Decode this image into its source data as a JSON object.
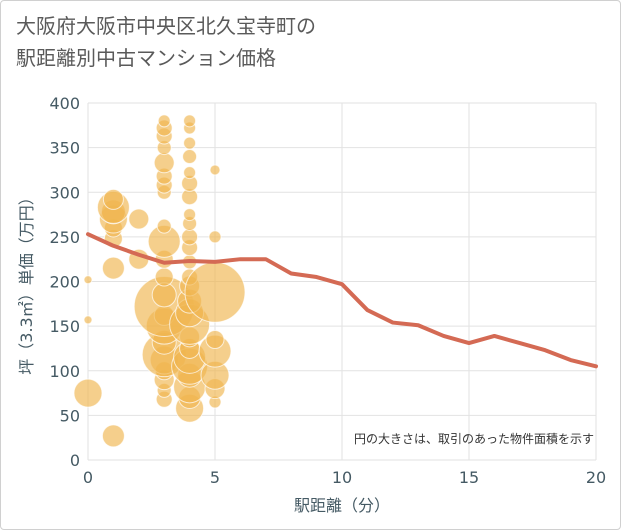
{
  "title_line1": "大阪府大阪市中央区北久宝寺町の",
  "title_line2": "駅距離別中古マンション価格",
  "colors": {
    "bubble": "#f0b64f",
    "line": "#d46a54",
    "grid": "#e2e2e2",
    "axis_text": "#455a64"
  },
  "chart_data": {
    "type": "scatter",
    "xlabel": "駅距離（分）",
    "ylabel": "坪（3.3㎡）単価（万円）",
    "xlim": [
      0,
      20
    ],
    "ylim": [
      0,
      400
    ],
    "xticks": [
      0,
      5,
      10,
      15,
      20
    ],
    "yticks": [
      0,
      50,
      100,
      150,
      200,
      250,
      300,
      350,
      400
    ],
    "grid": true,
    "note": "円の大きさは、取引のあった物件面積を示す",
    "bubbles": [
      {
        "x": 0,
        "y": 75,
        "s": 14
      },
      {
        "x": 0,
        "y": 157,
        "s": 4
      },
      {
        "x": 0,
        "y": 202,
        "s": 4
      },
      {
        "x": 1,
        "y": 27,
        "s": 11
      },
      {
        "x": 1,
        "y": 215,
        "s": 11
      },
      {
        "x": 1,
        "y": 248,
        "s": 9
      },
      {
        "x": 1,
        "y": 260,
        "s": 9
      },
      {
        "x": 1,
        "y": 270,
        "s": 14
      },
      {
        "x": 1,
        "y": 278,
        "s": 12
      },
      {
        "x": 1,
        "y": 283,
        "s": 16
      },
      {
        "x": 1,
        "y": 292,
        "s": 10
      },
      {
        "x": 2,
        "y": 225,
        "s": 10
      },
      {
        "x": 2,
        "y": 270,
        "s": 10
      },
      {
        "x": 3,
        "y": 68,
        "s": 8
      },
      {
        "x": 3,
        "y": 78,
        "s": 7
      },
      {
        "x": 3,
        "y": 90,
        "s": 10
      },
      {
        "x": 3,
        "y": 100,
        "s": 9
      },
      {
        "x": 3,
        "y": 112,
        "s": 14
      },
      {
        "x": 3,
        "y": 118,
        "s": 22
      },
      {
        "x": 3,
        "y": 132,
        "s": 12
      },
      {
        "x": 3,
        "y": 150,
        "s": 18
      },
      {
        "x": 3,
        "y": 162,
        "s": 10
      },
      {
        "x": 3,
        "y": 172,
        "s": 30
      },
      {
        "x": 3,
        "y": 185,
        "s": 12
      },
      {
        "x": 3,
        "y": 205,
        "s": 9
      },
      {
        "x": 3,
        "y": 225,
        "s": 9
      },
      {
        "x": 3,
        "y": 245,
        "s": 16
      },
      {
        "x": 3,
        "y": 262,
        "s": 7
      },
      {
        "x": 3,
        "y": 300,
        "s": 7
      },
      {
        "x": 3,
        "y": 308,
        "s": 8
      },
      {
        "x": 3,
        "y": 318,
        "s": 8
      },
      {
        "x": 3,
        "y": 333,
        "s": 10
      },
      {
        "x": 3,
        "y": 350,
        "s": 7
      },
      {
        "x": 3,
        "y": 363,
        "s": 8
      },
      {
        "x": 3,
        "y": 372,
        "s": 8
      },
      {
        "x": 3,
        "y": 380,
        "s": 6
      },
      {
        "x": 4,
        "y": 58,
        "s": 14
      },
      {
        "x": 4,
        "y": 70,
        "s": 11
      },
      {
        "x": 4,
        "y": 82,
        "s": 16
      },
      {
        "x": 4,
        "y": 95,
        "s": 12
      },
      {
        "x": 4,
        "y": 105,
        "s": 18
      },
      {
        "x": 4,
        "y": 115,
        "s": 16
      },
      {
        "x": 4,
        "y": 125,
        "s": 10
      },
      {
        "x": 4,
        "y": 138,
        "s": 10
      },
      {
        "x": 4,
        "y": 152,
        "s": 20
      },
      {
        "x": 4,
        "y": 165,
        "s": 14
      },
      {
        "x": 4,
        "y": 178,
        "s": 12
      },
      {
        "x": 4,
        "y": 195,
        "s": 10
      },
      {
        "x": 4,
        "y": 205,
        "s": 8
      },
      {
        "x": 4,
        "y": 222,
        "s": 7
      },
      {
        "x": 4,
        "y": 238,
        "s": 8
      },
      {
        "x": 4,
        "y": 250,
        "s": 8
      },
      {
        "x": 4,
        "y": 265,
        "s": 7
      },
      {
        "x": 4,
        "y": 275,
        "s": 6
      },
      {
        "x": 4,
        "y": 295,
        "s": 8
      },
      {
        "x": 4,
        "y": 310,
        "s": 8
      },
      {
        "x": 4,
        "y": 322,
        "s": 6
      },
      {
        "x": 4,
        "y": 340,
        "s": 7
      },
      {
        "x": 4,
        "y": 355,
        "s": 6
      },
      {
        "x": 4,
        "y": 372,
        "s": 6
      },
      {
        "x": 4,
        "y": 380,
        "s": 6
      },
      {
        "x": 5,
        "y": 65,
        "s": 6
      },
      {
        "x": 5,
        "y": 80,
        "s": 10
      },
      {
        "x": 5,
        "y": 95,
        "s": 14
      },
      {
        "x": 5,
        "y": 122,
        "s": 16
      },
      {
        "x": 5,
        "y": 135,
        "s": 9
      },
      {
        "x": 5,
        "y": 188,
        "s": 30
      },
      {
        "x": 5,
        "y": 250,
        "s": 6
      },
      {
        "x": 5,
        "y": 325,
        "s": 5
      }
    ],
    "series": [
      {
        "type": "line",
        "x": [
          0,
          1,
          2,
          3,
          4,
          5,
          6,
          7,
          8,
          9,
          10,
          11,
          12,
          13,
          14,
          15,
          16,
          17,
          18,
          19,
          20
        ],
        "values": [
          253,
          240,
          230,
          221,
          223,
          222,
          225,
          225,
          209,
          205,
          197,
          168,
          154,
          151,
          139,
          131,
          139,
          131,
          123,
          112,
          105
        ]
      }
    ]
  }
}
